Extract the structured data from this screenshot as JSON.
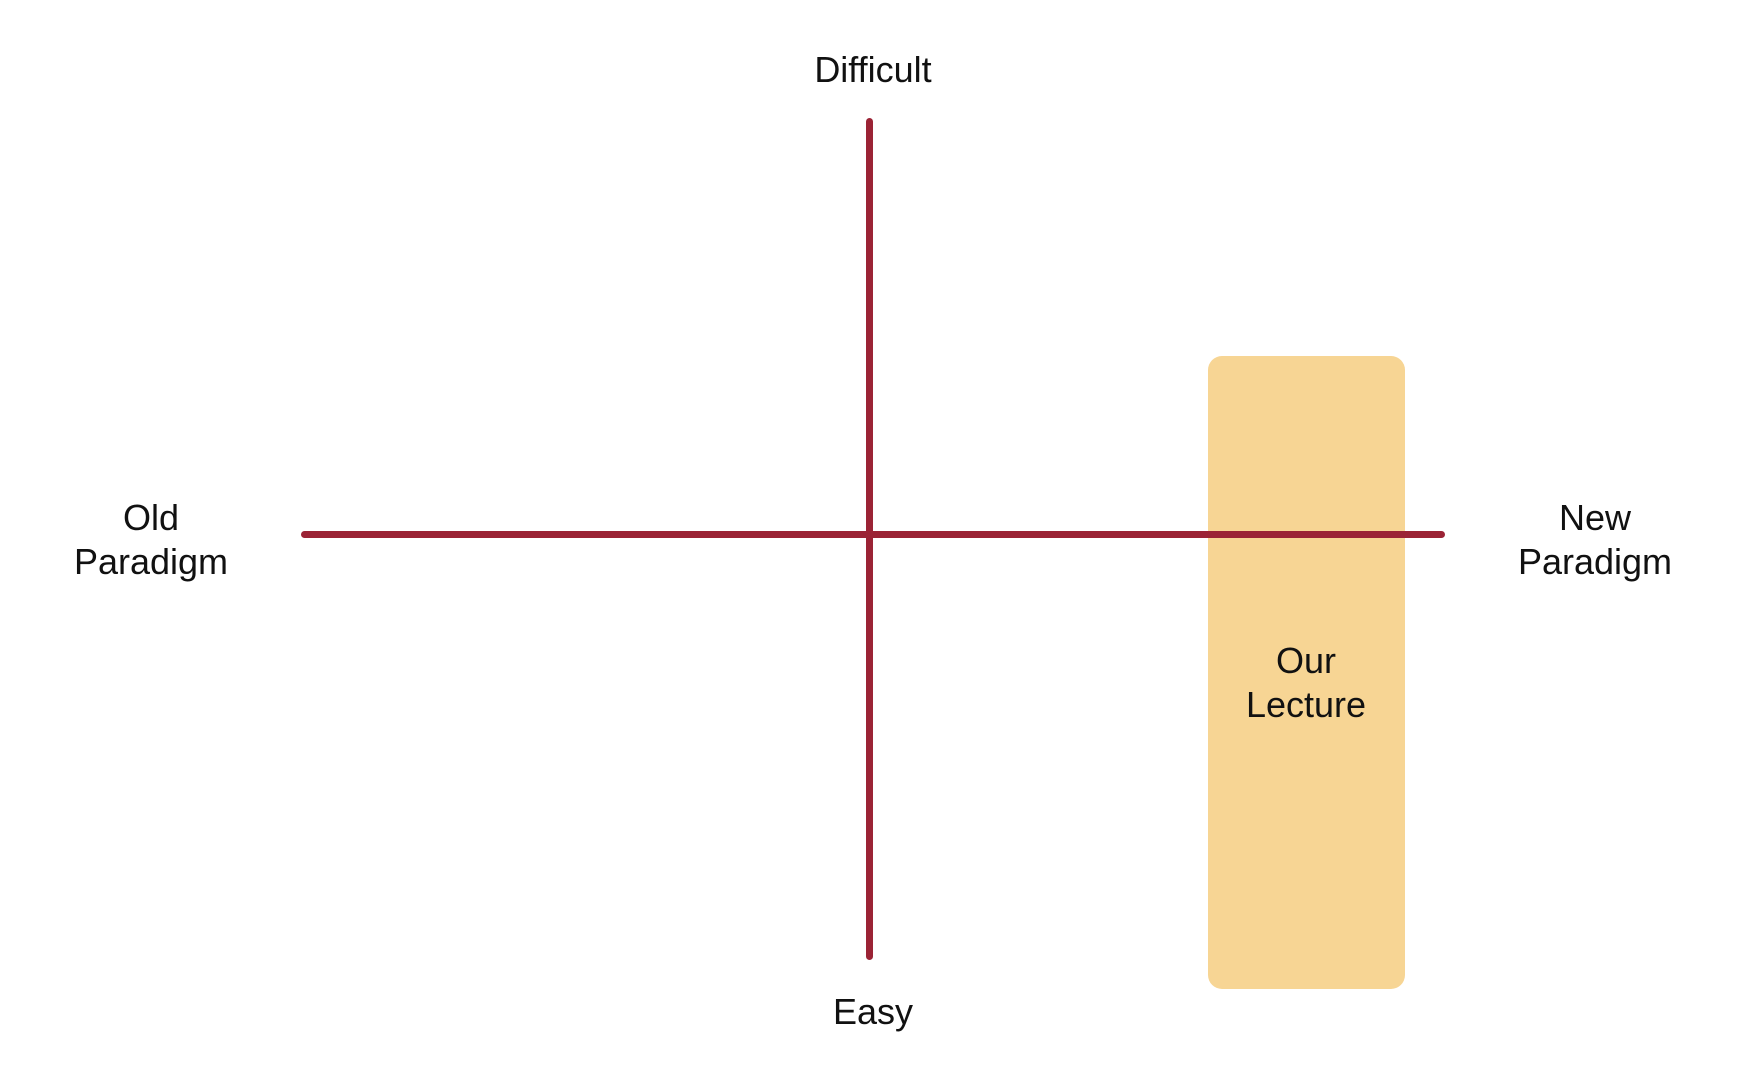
{
  "colors": {
    "axis": "#9B2335",
    "highlight": "#F7D594",
    "text": "#111111",
    "background": "#FFFFFF"
  },
  "axes": {
    "vertical": {
      "top_label": "Difficult",
      "bottom_label": "Easy"
    },
    "horizontal": {
      "left_label": "Old\nParadigm",
      "right_label": "New\nParadigm"
    }
  },
  "highlight_region": {
    "label": "Our\nLecture"
  }
}
